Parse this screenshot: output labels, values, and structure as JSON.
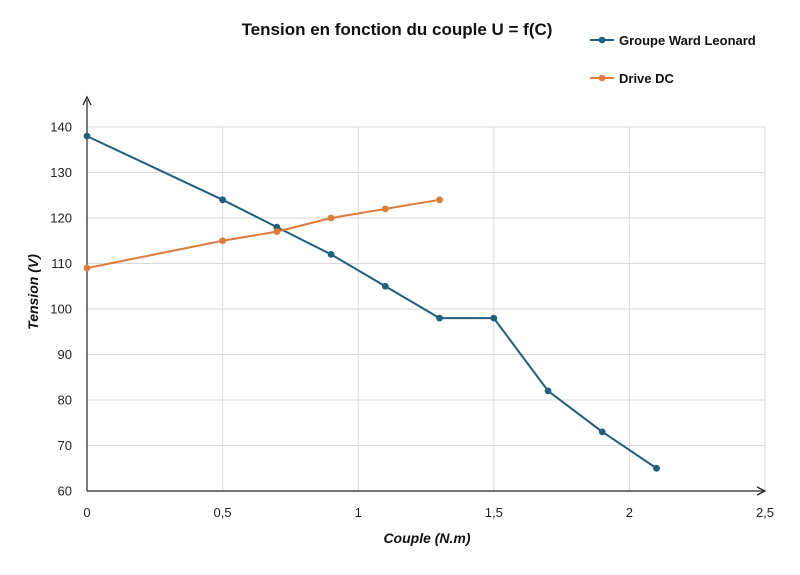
{
  "chart_data": {
    "type": "line",
    "title": "Tension en fonction du couple U = f(C)",
    "xlabel": "Couple (N.m)",
    "ylabel": "Tension (V)",
    "xlim": [
      0,
      2.5
    ],
    "ylim": [
      60,
      140
    ],
    "x_ticks": [
      0,
      0.5,
      1,
      1.5,
      2,
      2.5
    ],
    "x_tick_labels": [
      "0",
      "0,5",
      "1",
      "1,5",
      "2",
      "2,5"
    ],
    "y_ticks": [
      60,
      70,
      80,
      90,
      100,
      110,
      120,
      130,
      140
    ],
    "y_tick_labels": [
      "60",
      "70",
      "80",
      "90",
      "100",
      "110",
      "120",
      "130",
      "140"
    ],
    "grid": true,
    "legend_position": "top-right",
    "series": [
      {
        "name": "Groupe Ward Leonard",
        "color": "#1f5f7f",
        "x": [
          0,
          0.5,
          0.7,
          0.9,
          1.1,
          1.3,
          1.5,
          1.7,
          1.9,
          2.1
        ],
        "y": [
          138,
          124,
          118,
          112,
          105,
          98,
          98,
          82,
          73,
          65
        ]
      },
      {
        "name": "Drive DC",
        "color": "#e07b39",
        "x": [
          0,
          0.5,
          0.7,
          0.9,
          1.1,
          1.3
        ],
        "y": [
          109,
          115,
          117,
          120,
          122,
          124
        ]
      }
    ]
  }
}
